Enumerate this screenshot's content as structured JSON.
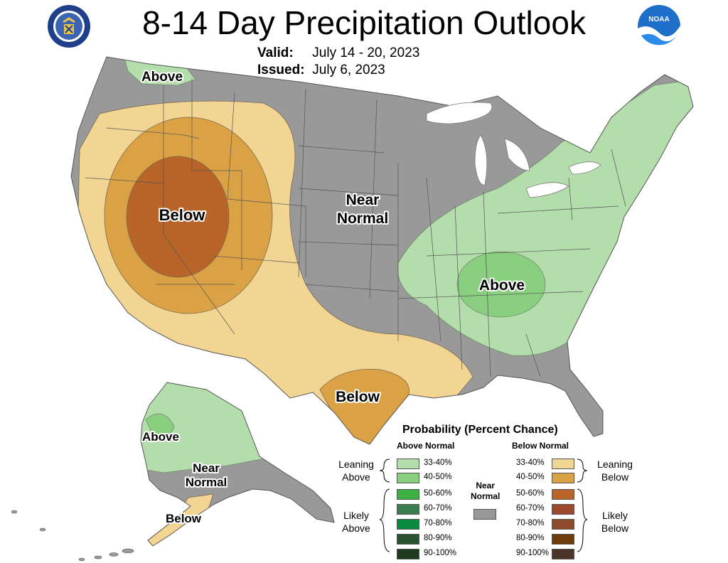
{
  "header": {
    "title": "8-14 Day Precipitation Outlook",
    "valid_label": "Valid:",
    "valid_value": "July 14 - 20, 2023",
    "issued_label": "Issued:",
    "issued_value": "July 6, 2023"
  },
  "logos": {
    "left": "doc-seal-icon",
    "right": "noaa-logo-icon"
  },
  "colors": {
    "above_33_40": "#b3ddaa",
    "above_40_50": "#89cf7f",
    "above_50_60": "#3cb043",
    "above_60_70": "#3b7d4f",
    "above_70_80": "#0a8a3c",
    "above_80_90": "#285232",
    "above_90_100": "#1d3a1f",
    "below_33_40": "#f2d593",
    "below_40_50": "#dba245",
    "below_50_60": "#b96428",
    "below_60_70": "#9c4a2d",
    "below_70_80": "#8e4b2e",
    "below_80_90": "#6e3b0a",
    "below_90_100": "#4d3428",
    "near_normal": "#999999"
  },
  "map_labels": {
    "nw_above": "Above",
    "west_below": "Below",
    "near_normal_line1": "Near",
    "near_normal_line2": "Normal",
    "east_above": "Above",
    "texas_below": "Below",
    "ak_above": "Above",
    "ak_near_line1": "Near",
    "ak_near_line2": "Normal",
    "ak_below": "Below"
  },
  "legend": {
    "title": "Probability (Percent Chance)",
    "above_header": "Above Normal",
    "below_header": "Below Normal",
    "near_line1": "Near",
    "near_line2": "Normal",
    "leaning_above": [
      "Leaning",
      "Above"
    ],
    "likely_above": [
      "Likely",
      "Above"
    ],
    "leaning_below": [
      "Leaning",
      "Below"
    ],
    "likely_below": [
      "Likely",
      "Below"
    ],
    "ranges": [
      "33-40%",
      "40-50%",
      "50-60%",
      "60-70%",
      "70-80%",
      "80-90%",
      "90-100%"
    ]
  }
}
